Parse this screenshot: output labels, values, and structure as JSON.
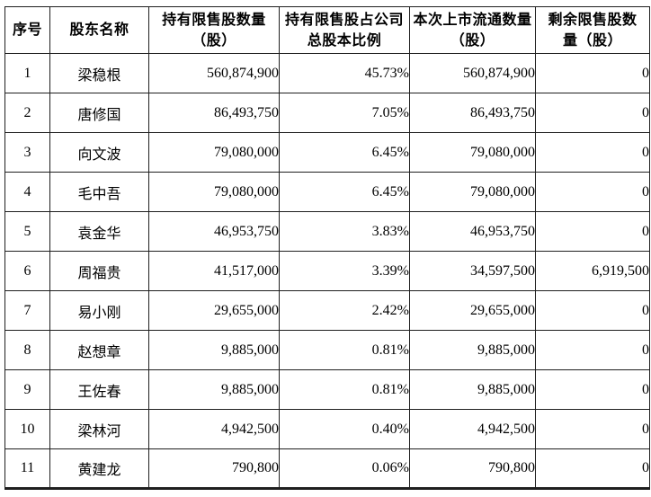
{
  "page": {
    "background_color": "#ffffff",
    "border_color": "#1f1f1f",
    "text_color": "#000000"
  },
  "table": {
    "title_semantic": "restricted-shares-unlock-table",
    "columns": [
      {
        "id": "index",
        "label": "序号"
      },
      {
        "id": "shareholder",
        "label": "股东名称"
      },
      {
        "id": "restricted-held",
        "label": "持有限售股数量\n（股）"
      },
      {
        "id": "ratio",
        "label": "持有限售股占公司\n总股本比例"
      },
      {
        "id": "listed-now",
        "label": "本次上市流通数量\n（股）"
      },
      {
        "id": "remaining",
        "label": "剩余限售股数\n量（股）"
      }
    ],
    "rows": [
      [
        "1",
        "梁稳根",
        "560,874,900",
        "45.73%",
        "560,874,900",
        "0"
      ],
      [
        "2",
        "唐修国",
        "86,493,750",
        "7.05%",
        "86,493,750",
        "0"
      ],
      [
        "3",
        "向文波",
        "79,080,000",
        "6.45%",
        "79,080,000",
        "0"
      ],
      [
        "4",
        "毛中吾",
        "79,080,000",
        "6.45%",
        "79,080,000",
        "0"
      ],
      [
        "5",
        "袁金华",
        "46,953,750",
        "3.83%",
        "46,953,750",
        "0"
      ],
      [
        "6",
        "周福贵",
        "41,517,000",
        "3.39%",
        "34,597,500",
        "6,919,500"
      ],
      [
        "7",
        "易小刚",
        "29,655,000",
        "2.42%",
        "29,655,000",
        "0"
      ],
      [
        "8",
        "赵想章",
        "9,885,000",
        "0.81%",
        "9,885,000",
        "0"
      ],
      [
        "9",
        "王佐春",
        "9,885,000",
        "0.81%",
        "9,885,000",
        "0"
      ],
      [
        "10",
        "梁林河",
        "4,942,500",
        "0.40%",
        "4,942,500",
        "0"
      ],
      [
        "11",
        "黄建龙",
        "790,800",
        "0.06%",
        "790,800",
        "0"
      ]
    ]
  }
}
